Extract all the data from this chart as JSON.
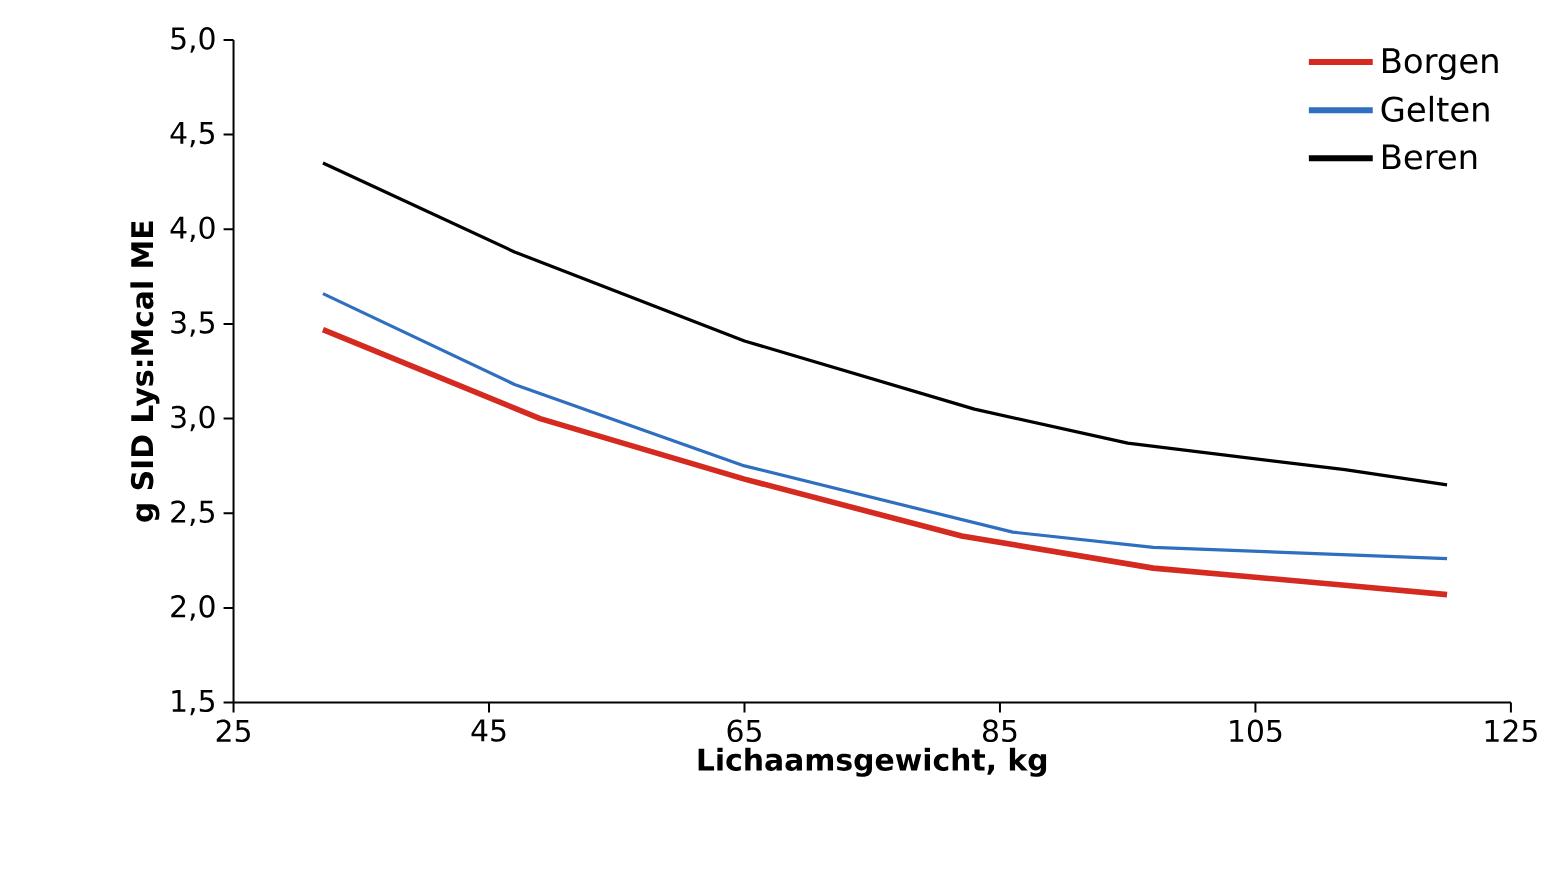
{
  "chart_data": {
    "type": "line",
    "xlabel": "Lichaamsgewicht, kg",
    "ylabel": "g SID Lys:Mcal ME",
    "xlim": [
      25,
      125
    ],
    "xticks": [
      25,
      45,
      65,
      85,
      105,
      125
    ],
    "ylim": [
      1.5,
      5.0
    ],
    "yticks": [
      {
        "value": 1.5,
        "label": "1,5"
      },
      {
        "value": 2.0,
        "label": "2,0"
      },
      {
        "value": 2.5,
        "label": "2,5"
      },
      {
        "value": 3.0,
        "label": "3,0"
      },
      {
        "value": 3.5,
        "label": "3,5"
      },
      {
        "value": 4.0,
        "label": "4,0"
      },
      {
        "value": 4.5,
        "label": "4,5"
      },
      {
        "value": 5.0,
        "label": "5,0"
      }
    ],
    "grid": false,
    "legend": "top right",
    "marker": "none",
    "line_style": "solid",
    "series": [
      {
        "name": "Borgen",
        "color": "#d42a20",
        "x": [
          32,
          49,
          65,
          82,
          97,
          112,
          120
        ],
        "values": [
          3.47,
          3.0,
          2.68,
          2.38,
          2.21,
          2.12,
          2.07
        ]
      },
      {
        "name": "Gelten",
        "color": "#2f6fbf",
        "x": [
          32,
          47,
          65,
          86,
          97,
          120
        ],
        "values": [
          3.66,
          3.18,
          2.75,
          2.4,
          2.32,
          2.26
        ]
      },
      {
        "name": "Beren",
        "color": "#000000",
        "x": [
          32,
          47,
          65,
          83,
          95,
          112,
          120
        ],
        "values": [
          4.35,
          3.88,
          3.41,
          3.05,
          2.87,
          2.73,
          2.65
        ]
      }
    ]
  }
}
